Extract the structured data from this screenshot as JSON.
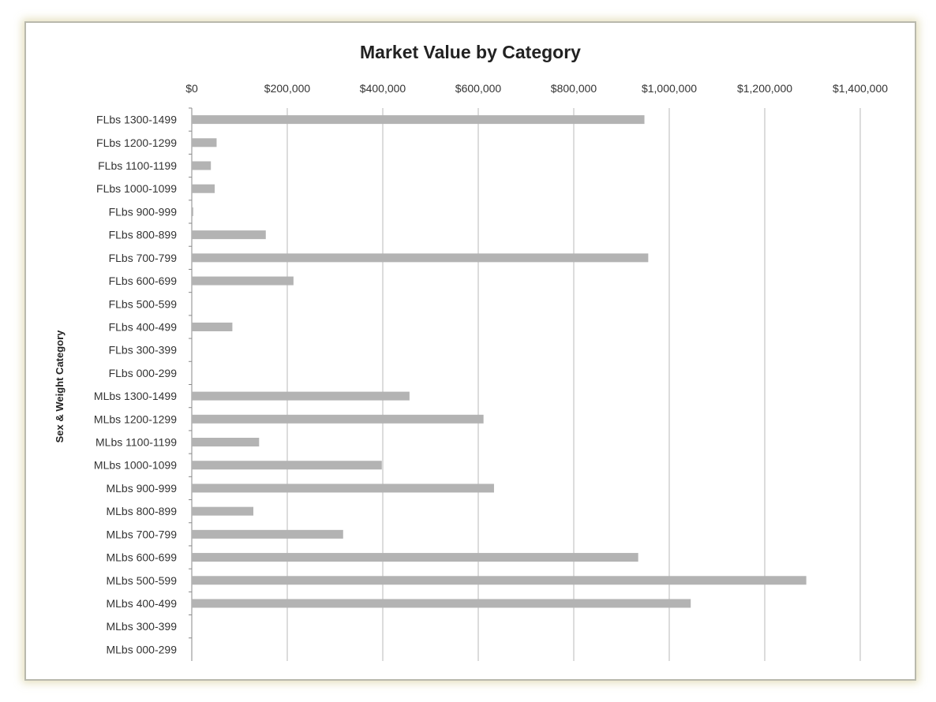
{
  "chart_data": {
    "type": "bar",
    "orientation": "horizontal",
    "title": "Market Value by Category",
    "xlabel": "",
    "ylabel": "Sex & Weight Category",
    "xlim": [
      0,
      1400000
    ],
    "x_ticks": [
      0,
      200000,
      400000,
      600000,
      800000,
      1000000,
      1200000,
      1400000
    ],
    "x_tick_labels": [
      "$0",
      "$200,000",
      "$400,000",
      "$600,000",
      "$800,000",
      "$1,000,000",
      "$1,200,000",
      "$1,400,000"
    ],
    "x_axis_position": "top",
    "grid": true,
    "legend": "none",
    "bar_color": "#b3b3b3",
    "categories": [
      "FLbs 1300-1499",
      "FLbs 1200-1299",
      "FLbs 1100-1199",
      "FLbs 1000-1099",
      "FLbs 900-999",
      "FLbs 800-899",
      "FLbs 700-799",
      "FLbs 600-699",
      "FLbs 500-599",
      "FLbs 400-499",
      "FLbs 300-399",
      "FLbs 000-299",
      "MLbs 1300-1499",
      "MLbs 1200-1299",
      "MLbs 1100-1199",
      "MLbs 1000-1099",
      "MLbs 900-999",
      "MLbs 800-899",
      "MLbs 700-799",
      "MLbs 600-699",
      "MLbs 500-599",
      "MLbs 400-499",
      "MLbs 300-399",
      "MLbs 000-299"
    ],
    "values": [
      948000,
      52000,
      40000,
      48000,
      3000,
      155000,
      956000,
      213000,
      0,
      85000,
      0,
      0,
      456000,
      611000,
      141000,
      398000,
      633000,
      129000,
      317000,
      935000,
      1287000,
      1045000,
      0,
      0
    ]
  }
}
